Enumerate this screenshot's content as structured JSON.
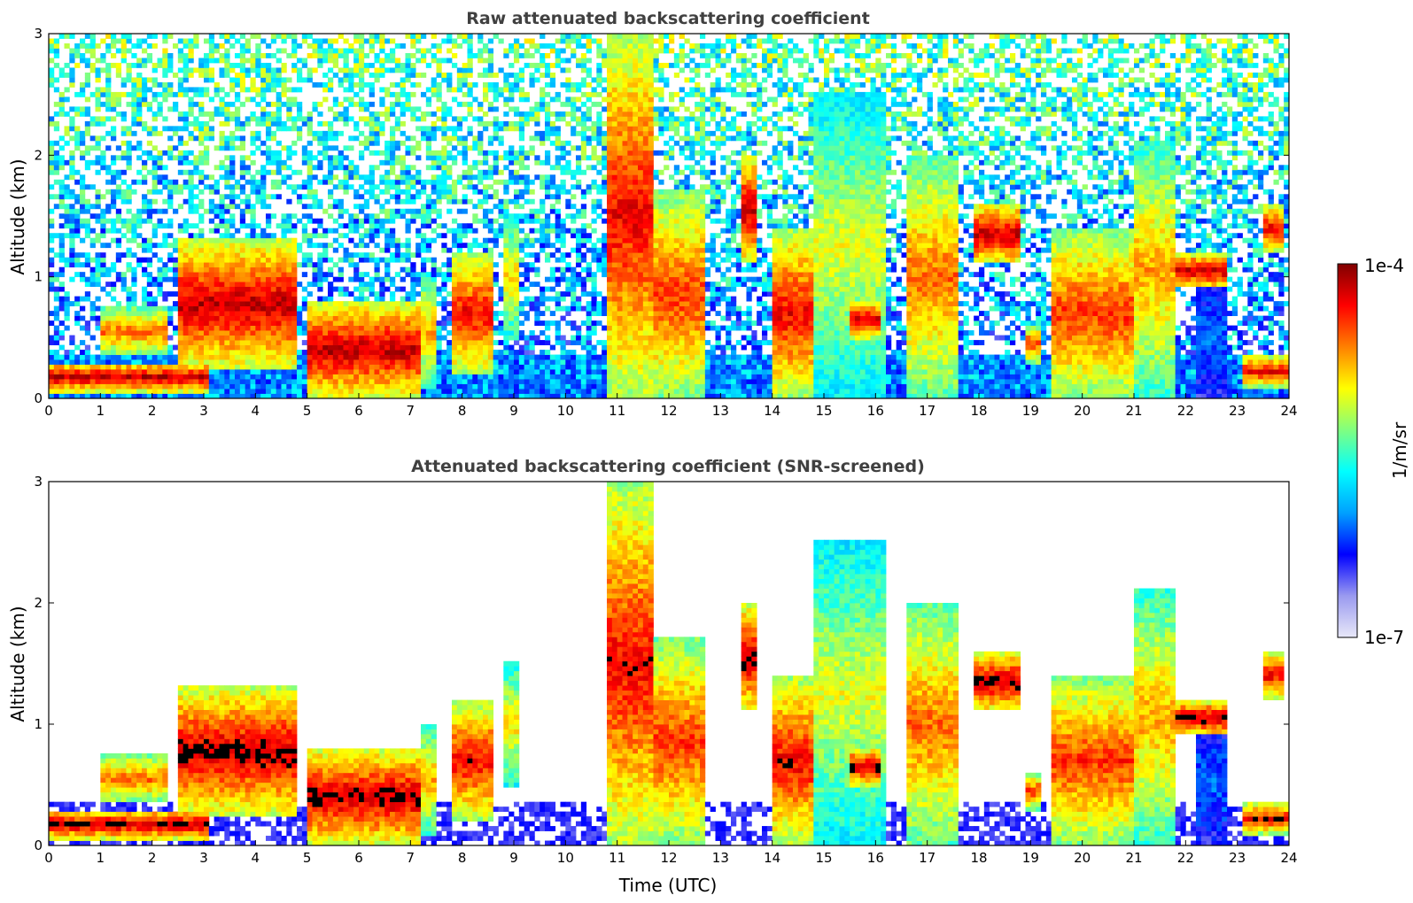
{
  "chart_data": [
    {
      "type": "heatmap",
      "title": "Raw attenuated backscattering coefficient",
      "xlabel": "",
      "ylabel": "Altitude (km)",
      "xlim": [
        0,
        24
      ],
      "ylim": [
        0,
        3
      ],
      "xticks": [
        "0",
        "1",
        "2",
        "3",
        "4",
        "5",
        "6",
        "7",
        "8",
        "9",
        "10",
        "11",
        "12",
        "13",
        "14",
        "15",
        "16",
        "17",
        "18",
        "19",
        "20",
        "21",
        "22",
        "23",
        "24"
      ],
      "yticks": [
        "0",
        "1",
        "2",
        "3"
      ],
      "screened": false,
      "features": [
        {
          "t0": 0.0,
          "t1": 3.1,
          "z0": 0.05,
          "z1": 0.3,
          "level": 0.95
        },
        {
          "t0": 1.0,
          "t1": 2.3,
          "z0": 0.35,
          "z1": 0.75,
          "level": 0.8
        },
        {
          "t0": 2.5,
          "t1": 4.8,
          "z0": 0.25,
          "z1": 1.3,
          "level": 0.95
        },
        {
          "t0": 5.0,
          "t1": 7.2,
          "z0": 0.0,
          "z1": 0.8,
          "level": 0.95
        },
        {
          "t0": 7.2,
          "t1": 7.5,
          "z0": 0.1,
          "z1": 1.0,
          "level": 0.75
        },
        {
          "t0": 7.8,
          "t1": 8.6,
          "z0": 0.2,
          "z1": 1.2,
          "level": 0.9
        },
        {
          "t0": 8.8,
          "t1": 9.1,
          "z0": 0.5,
          "z1": 1.5,
          "level": 0.7
        },
        {
          "t0": 10.8,
          "t1": 11.7,
          "z0": 0.0,
          "z1": 3.0,
          "level": 0.9
        },
        {
          "t0": 11.7,
          "t1": 12.7,
          "z0": 0.0,
          "z1": 1.7,
          "level": 0.85
        },
        {
          "t0": 13.4,
          "t1": 13.7,
          "z0": 1.1,
          "z1": 2.0,
          "level": 0.95
        },
        {
          "t0": 14.0,
          "t1": 14.8,
          "z0": 0.0,
          "z1": 1.4,
          "level": 0.9
        },
        {
          "t0": 14.8,
          "t1": 16.2,
          "z0": 0.0,
          "z1": 2.5,
          "level": 0.65
        },
        {
          "t0": 15.5,
          "t1": 16.1,
          "z0": 0.5,
          "z1": 0.8,
          "level": 0.95
        },
        {
          "t0": 16.6,
          "t1": 17.6,
          "z0": 0.0,
          "z1": 2.0,
          "level": 0.8
        },
        {
          "t0": 17.9,
          "t1": 18.8,
          "z0": 1.1,
          "z1": 1.6,
          "level": 0.95
        },
        {
          "t0": 18.9,
          "t1": 19.2,
          "z0": 0.3,
          "z1": 0.6,
          "level": 0.85
        },
        {
          "t0": 19.4,
          "t1": 21.0,
          "z0": 0.0,
          "z1": 1.4,
          "level": 0.85
        },
        {
          "t0": 21.0,
          "t1": 21.8,
          "z0": 0.0,
          "z1": 2.1,
          "level": 0.75
        },
        {
          "t0": 21.8,
          "t1": 22.8,
          "z0": 0.9,
          "z1": 1.2,
          "level": 0.95
        },
        {
          "t0": 22.2,
          "t1": 22.8,
          "z0": 0.0,
          "z1": 1.0,
          "level": 0.3
        },
        {
          "t0": 23.1,
          "t1": 24.0,
          "z0": 0.1,
          "z1": 0.35,
          "level": 0.9
        },
        {
          "t0": 23.5,
          "t1": 23.9,
          "z0": 1.2,
          "z1": 1.6,
          "level": 0.9
        }
      ]
    },
    {
      "type": "heatmap",
      "title": "Attenuated backscattering coefficient (SNR-screened)",
      "xlabel": "Time (UTC)",
      "ylabel": "Altitude (km)",
      "xlim": [
        0,
        24
      ],
      "ylim": [
        0,
        3
      ],
      "xticks": [
        "0",
        "1",
        "2",
        "3",
        "4",
        "5",
        "6",
        "7",
        "8",
        "9",
        "10",
        "11",
        "12",
        "13",
        "14",
        "15",
        "16",
        "17",
        "18",
        "19",
        "20",
        "21",
        "22",
        "23",
        "24"
      ],
      "yticks": [
        "0",
        "1",
        "2",
        "3"
      ],
      "screened": true,
      "saturated_color": "#000000"
    }
  ],
  "colorbar": {
    "label": "1/m/sr",
    "max_label": "1e-4",
    "min_label": "1e-7",
    "colormap": "jet",
    "colors": [
      "#e8e8f8",
      "#9a9af0",
      "#0000ff",
      "#00a0ff",
      "#00ffff",
      "#80ff80",
      "#ffff00",
      "#ff8000",
      "#ff0000",
      "#800000"
    ]
  }
}
